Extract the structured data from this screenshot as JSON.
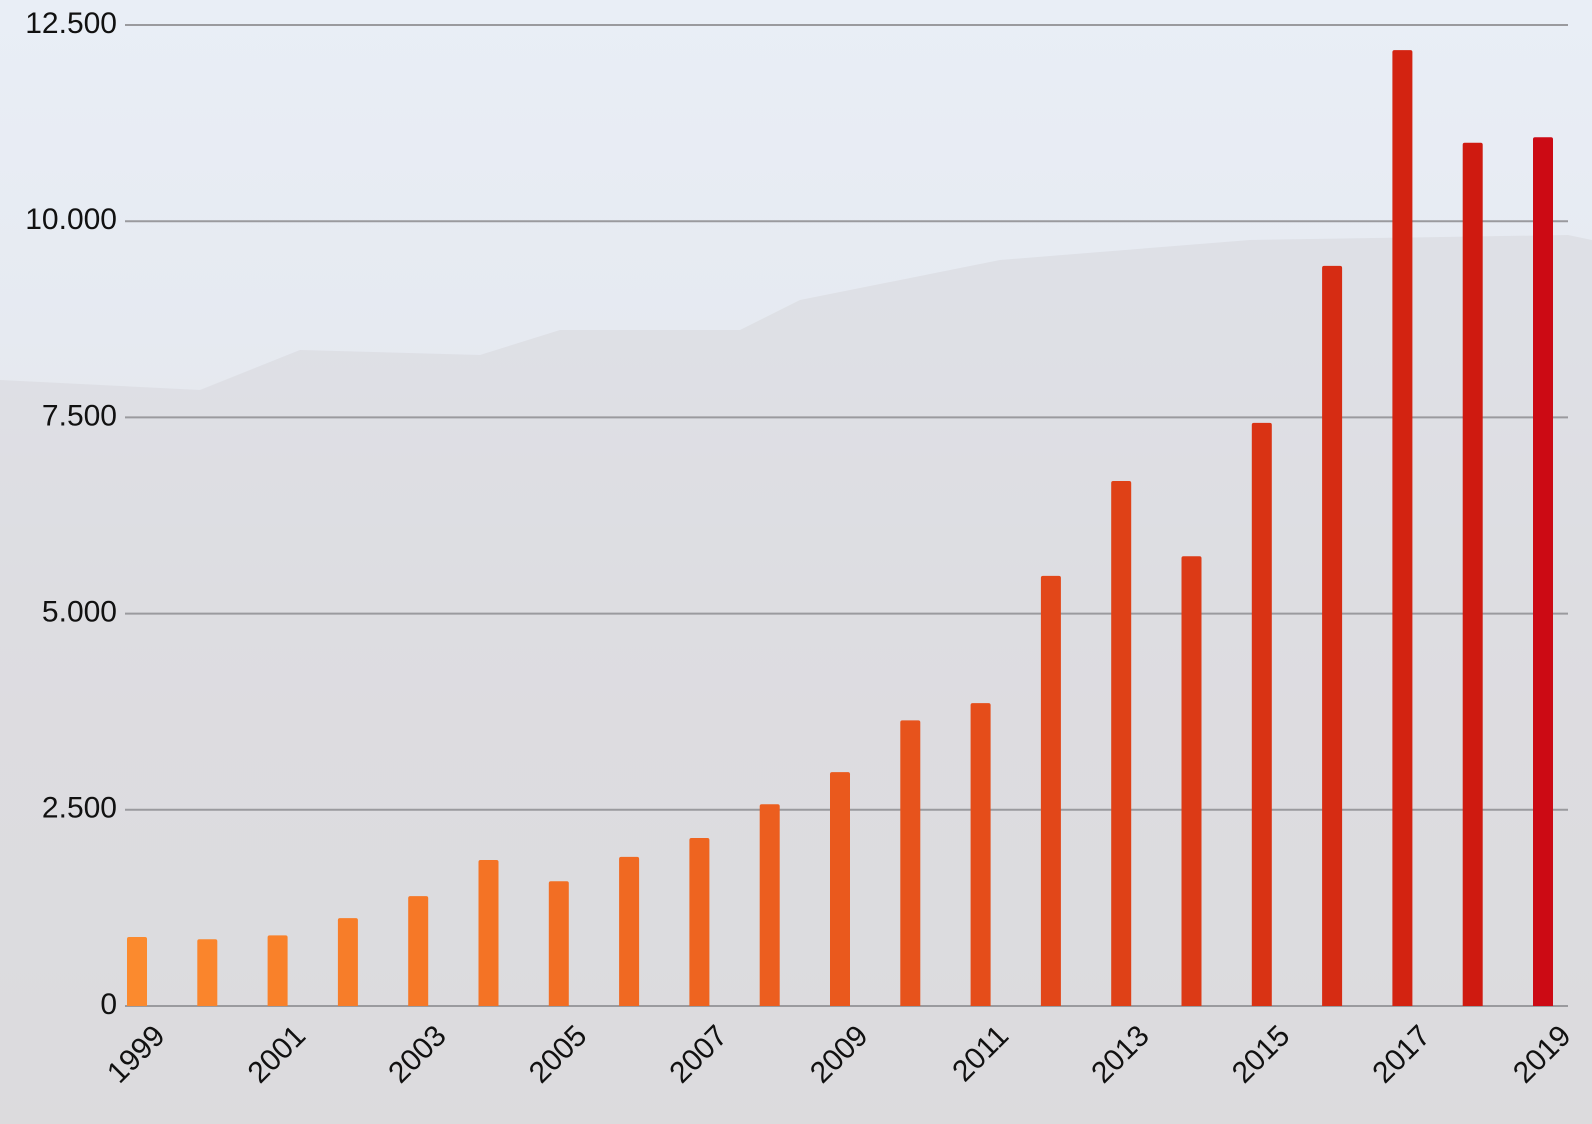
{
  "chart_data": {
    "type": "bar",
    "categories": [
      "1999",
      null,
      "2001",
      null,
      "2003",
      null,
      "2005",
      null,
      "2007",
      null,
      "2009",
      null,
      "2011",
      null,
      "2013",
      null,
      "2015",
      null,
      "2017",
      null,
      "2019"
    ],
    "values": [
      880,
      850,
      900,
      1120,
      1400,
      1860,
      1590,
      1900,
      2140,
      2570,
      2980,
      3640,
      3860,
      5480,
      6690,
      5730,
      7430,
      9430,
      12180,
      11000,
      11070
    ],
    "colors": [
      "#fb8a2e",
      "#fa852c",
      "#f9812a",
      "#f77d29",
      "#f67827",
      "#f47325",
      "#f26e24",
      "#f06922",
      "#ee6420",
      "#ec5e1f",
      "#ea591d",
      "#e7531c",
      "#e54d1a",
      "#e24719",
      "#df4117",
      "#dc3a16",
      "#d93314",
      "#d62c13",
      "#d32311",
      "#cf1a10",
      "#cc0a14"
    ],
    "ylim": [
      0,
      12500
    ],
    "yticks": [
      0,
      {
        "value": 2500,
        "label": "2.500"
      },
      {
        "value": 5000,
        "label": "5.000"
      },
      {
        "value": 7500,
        "label": "7.500"
      },
      {
        "value": 10000,
        "label": "10.000"
      },
      {
        "value": 12500,
        "label": "12.500"
      }
    ],
    "grid": true
  }
}
